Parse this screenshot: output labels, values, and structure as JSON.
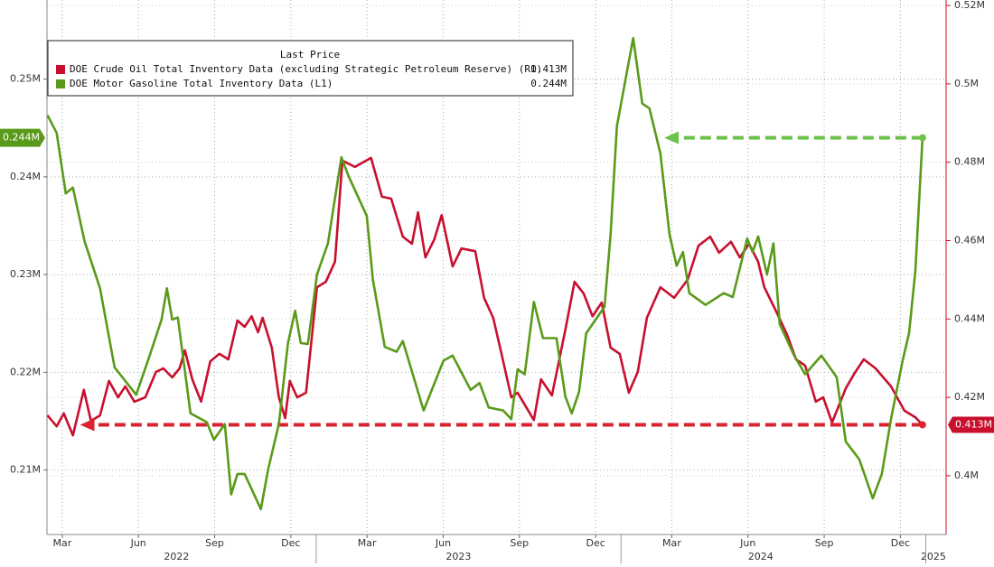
{
  "chart_data": {
    "type": "line",
    "legend_title": "Last Price",
    "xlim": [
      1.4,
      36.8
    ],
    "xticks": [
      {
        "value": 2,
        "label": "Mar"
      },
      {
        "value": 5,
        "label": "Jun"
      },
      {
        "value": 8,
        "label": "Sep"
      },
      {
        "value": 11,
        "label": "Dec"
      },
      {
        "value": 14,
        "label": "Mar"
      },
      {
        "value": 17,
        "label": "Jun"
      },
      {
        "value": 20,
        "label": "Sep"
      },
      {
        "value": 23,
        "label": "Dec"
      },
      {
        "value": 26,
        "label": "Mar"
      },
      {
        "value": 29,
        "label": "Jun"
      },
      {
        "value": 32,
        "label": "Sep"
      },
      {
        "value": 35,
        "label": "Dec"
      }
    ],
    "year_ticks": [
      {
        "value": 6.5,
        "label": "2022"
      },
      {
        "value": 17.6,
        "label": "2023"
      },
      {
        "value": 29.5,
        "label": "2024"
      },
      {
        "value": 36.3,
        "label": "2025"
      }
    ],
    "ylim": [
      0.2034,
      0.2581
    ],
    "yticks": [
      {
        "value": 0.21,
        "label": "0.21M"
      },
      {
        "value": 0.22,
        "label": "0.22M"
      },
      {
        "value": 0.23,
        "label": "0.23M"
      },
      {
        "value": 0.24,
        "label": "0.24M"
      },
      {
        "value": 0.25,
        "label": "0.25M"
      }
    ],
    "y2lim": [
      0.385,
      0.5214
    ],
    "y2ticks": [
      {
        "value": 0.4,
        "label": "0.4M"
      },
      {
        "value": 0.42,
        "label": "0.42M"
      },
      {
        "value": 0.44,
        "label": "0.44M"
      },
      {
        "value": 0.46,
        "label": "0.46M"
      },
      {
        "value": 0.48,
        "label": "0.48M"
      },
      {
        "value": 0.5,
        "label": "0.5M"
      },
      {
        "value": 0.52,
        "label": "0.52M"
      }
    ],
    "grid": true,
    "series": [
      {
        "name": "DOE Crude Oil Total Inventory Data (excluding Strategic Petroleum Reserve)  (R1)",
        "color": "#c8102e",
        "axis": "y2",
        "last_label": "0.413M",
        "x": [
          1.42,
          1.78,
          2.06,
          2.42,
          2.85,
          3.13,
          3.49,
          3.84,
          4.2,
          4.48,
          4.84,
          5.27,
          5.69,
          5.98,
          6.33,
          6.62,
          6.83,
          7.12,
          7.47,
          7.83,
          8.19,
          8.54,
          8.9,
          9.18,
          9.46,
          9.71,
          9.89,
          10.25,
          10.53,
          10.78,
          10.96,
          11.25,
          11.6,
          12.03,
          12.38,
          12.74,
          13.03,
          13.52,
          14.16,
          14.59,
          14.95,
          15.41,
          15.77,
          16.01,
          16.3,
          16.65,
          16.94,
          17.37,
          17.72,
          18.26,
          18.61,
          18.97,
          19.32,
          19.68,
          19.93,
          20.57,
          20.85,
          21.28,
          21.81,
          22.17,
          22.53,
          22.88,
          23.24,
          23.59,
          23.95,
          24.31,
          24.66,
          25.02,
          25.55,
          26.09,
          26.62,
          27.05,
          27.51,
          27.86,
          28.33,
          28.68,
          29.04,
          29.4,
          29.64,
          30.11,
          30.53,
          30.89,
          31.25,
          31.67,
          31.96,
          32.31,
          32.85,
          33.2,
          33.56,
          34.02,
          34.63,
          35.16,
          35.59,
          35.87
        ],
        "values": [
          0.4154,
          0.4126,
          0.4159,
          0.4103,
          0.4219,
          0.414,
          0.4154,
          0.4242,
          0.42,
          0.4228,
          0.4189,
          0.42,
          0.4265,
          0.4274,
          0.4251,
          0.4274,
          0.432,
          0.4246,
          0.4189,
          0.4292,
          0.4311,
          0.4297,
          0.4396,
          0.438,
          0.4407,
          0.4366,
          0.4403,
          0.4327,
          0.42,
          0.4147,
          0.4242,
          0.42,
          0.4212,
          0.4481,
          0.4495,
          0.4546,
          0.4804,
          0.4788,
          0.4811,
          0.4712,
          0.4707,
          0.461,
          0.4592,
          0.4672,
          0.4557,
          0.4603,
          0.4665,
          0.4534,
          0.458,
          0.4573,
          0.4454,
          0.4403,
          0.4304,
          0.42,
          0.4212,
          0.4142,
          0.4246,
          0.4205,
          0.4373,
          0.4495,
          0.4465,
          0.4407,
          0.4442,
          0.4327,
          0.4311,
          0.4212,
          0.4265,
          0.4403,
          0.4481,
          0.4454,
          0.45,
          0.4587,
          0.461,
          0.4569,
          0.4597,
          0.4557,
          0.4592,
          0.4546,
          0.4481,
          0.4419,
          0.4361,
          0.4297,
          0.4281,
          0.4189,
          0.42,
          0.4136,
          0.4223,
          0.4262,
          0.4297,
          0.4274,
          0.4228,
          0.4166,
          0.4149,
          0.413
        ]
      },
      {
        "name": "DOE Motor Gasoline Total Inventory Data  (L1)",
        "color": "#5a9a1a",
        "axis": "y",
        "last_label": "0.244M",
        "x": [
          1.42,
          1.78,
          2.14,
          2.42,
          2.88,
          3.49,
          4.06,
          4.91,
          5.44,
          5.91,
          6.12,
          6.33,
          6.55,
          7.05,
          7.69,
          7.97,
          8.4,
          8.65,
          8.9,
          9.18,
          9.82,
          10.11,
          10.53,
          10.89,
          11.17,
          11.39,
          11.67,
          12.03,
          12.46,
          12.99,
          13.27,
          13.99,
          14.23,
          14.7,
          15.16,
          15.41,
          16.23,
          17.01,
          17.37,
          18.08,
          18.43,
          18.79,
          19.36,
          19.68,
          19.93,
          20.21,
          20.57,
          20.93,
          21.46,
          21.81,
          22.06,
          22.35,
          22.63,
          23.35,
          23.59,
          23.84,
          24.48,
          24.84,
          25.12,
          25.55,
          25.91,
          26.19,
          26.44,
          26.69,
          27.33,
          28.04,
          28.4,
          28.97,
          29.18,
          29.4,
          29.75,
          30.0,
          30.25,
          30.82,
          31.25,
          31.89,
          32.49,
          32.85,
          33.38,
          33.91,
          34.27,
          34.63,
          35.09,
          35.34,
          35.59,
          35.87
        ],
        "values": [
          0.2463,
          0.2445,
          0.2383,
          0.2389,
          0.2334,
          0.2286,
          0.2205,
          0.2177,
          0.2217,
          0.2254,
          0.2286,
          0.2254,
          0.2256,
          0.2158,
          0.2149,
          0.2131,
          0.2147,
          0.2075,
          0.2096,
          0.2096,
          0.206,
          0.2101,
          0.2147,
          0.223,
          0.2263,
          0.223,
          0.2229,
          0.23,
          0.2332,
          0.242,
          0.2401,
          0.236,
          0.2295,
          0.2226,
          0.2221,
          0.2232,
          0.2161,
          0.2212,
          0.2217,
          0.2182,
          0.2189,
          0.2164,
          0.2161,
          0.2152,
          0.2203,
          0.2198,
          0.2272,
          0.2235,
          0.2235,
          0.2175,
          0.2158,
          0.218,
          0.224,
          0.2267,
          0.2341,
          0.2452,
          0.2542,
          0.2475,
          0.247,
          0.2424,
          0.2341,
          0.2309,
          0.2323,
          0.2281,
          0.2269,
          0.2281,
          0.2277,
          0.2337,
          0.2323,
          0.2339,
          0.23,
          0.2332,
          0.2249,
          0.2217,
          0.2198,
          0.2217,
          0.2195,
          0.2129,
          0.2111,
          0.2071,
          0.2096,
          0.2152,
          0.2212,
          0.224,
          0.2304,
          0.244
        ]
      }
    ]
  }
}
